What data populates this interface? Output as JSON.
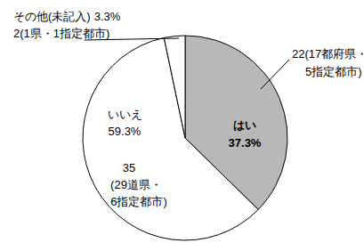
{
  "chart_data": {
    "type": "pie",
    "categories": [
      "はい",
      "いいえ",
      "その他(未記入)"
    ],
    "values": [
      37.3,
      59.3,
      3.3
    ],
    "value_labels": [
      "37.3%",
      "59.3%",
      "3.3%"
    ],
    "counts": [
      22,
      35,
      2
    ],
    "count_notes": [
      [
        "(17都府県・",
        "5指定都市)"
      ],
      [
        "(29道県・",
        "6指定都市)"
      ],
      [
        "(1県・1指定都市)"
      ]
    ],
    "colors": [
      "#b8b8b8",
      "#ffffff",
      "#ffffff"
    ],
    "data_labels": true
  }
}
